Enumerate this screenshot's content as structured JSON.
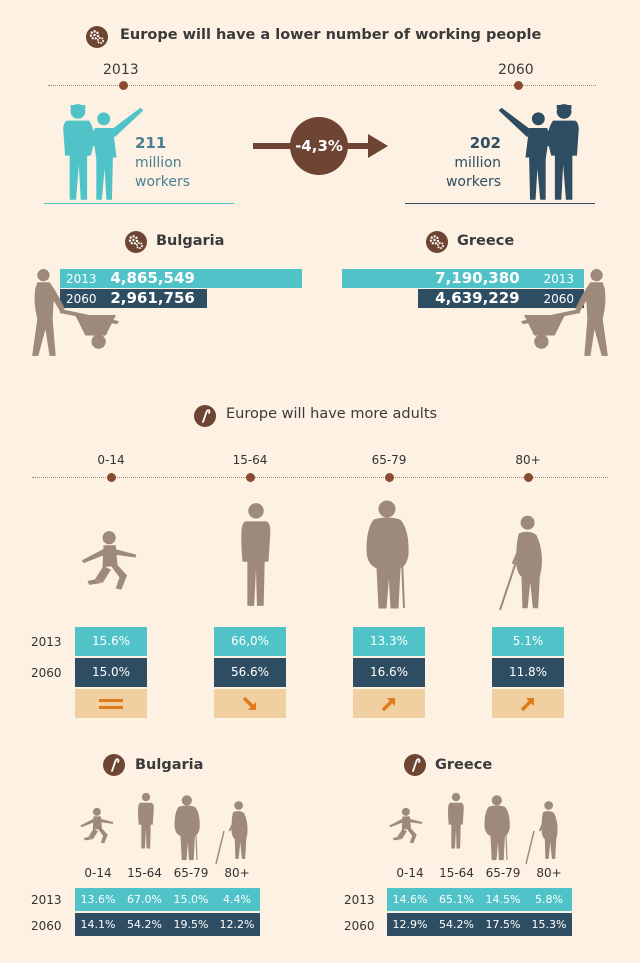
{
  "header": {
    "title": "Europe will have a lower number of working people"
  },
  "timeline": {
    "year_start": "2013",
    "year_end": "2060"
  },
  "workers": {
    "start": {
      "number": "211",
      "line2": "million",
      "line3": "workers"
    },
    "end": {
      "number": "202",
      "line2": "million",
      "line3": "workers"
    },
    "change": "-4,3%"
  },
  "countries": {
    "bulgaria_name": "Bulgaria",
    "greece_name": "Greece"
  },
  "colors": {
    "teal": "#4fc3c8",
    "navy": "#2f4d62",
    "brown": "#6e4432",
    "tan": "#f0cfa0",
    "orange": "#e07b1a",
    "silhouette": "#9e8a7a"
  },
  "adults": {
    "title": "Europe will have more adults"
  },
  "chart_data": [
    {
      "type": "bar",
      "title": "Bulgaria",
      "categories": [
        "2013",
        "2060"
      ],
      "values": [
        4865549,
        2961756
      ],
      "labels": [
        "4,865,549",
        "2,961,756"
      ]
    },
    {
      "type": "bar",
      "title": "Greece",
      "categories": [
        "2013",
        "2060"
      ],
      "values": [
        7190380,
        4639229
      ],
      "labels": [
        "7,190,380",
        "4,639,229"
      ]
    },
    {
      "type": "table",
      "title": "Europe will have more adults",
      "categories": [
        "0-14",
        "15-64",
        "65-79",
        "80+"
      ],
      "series": [
        {
          "name": "2013",
          "values": [
            "15.6%",
            "66,0%",
            "13.3%",
            "5.1%"
          ]
        },
        {
          "name": "2060",
          "values": [
            "15.0%",
            "56.6%",
            "16.6%",
            "11.8%"
          ]
        }
      ],
      "trend": [
        "equal",
        "down",
        "up",
        "up"
      ]
    },
    {
      "type": "table",
      "title": "Bulgaria",
      "categories": [
        "0-14",
        "15-64",
        "65-79",
        "80+"
      ],
      "series": [
        {
          "name": "2013",
          "values": [
            "13.6%",
            "67.0%",
            "15.0%",
            "4.4%"
          ]
        },
        {
          "name": "2060",
          "values": [
            "14.1%",
            "54.2%",
            "19.5%",
            "12.2%"
          ]
        }
      ]
    },
    {
      "type": "table",
      "title": "Greece",
      "categories": [
        "0-14",
        "15-64",
        "65-79",
        "80+"
      ],
      "series": [
        {
          "name": "2013",
          "values": [
            "14.6%",
            "65.1%",
            "14.5%",
            "5.8%"
          ]
        },
        {
          "name": "2060",
          "values": [
            "12.9%",
            "54.2%",
            "17.5%",
            "15.3%"
          ]
        }
      ]
    }
  ]
}
